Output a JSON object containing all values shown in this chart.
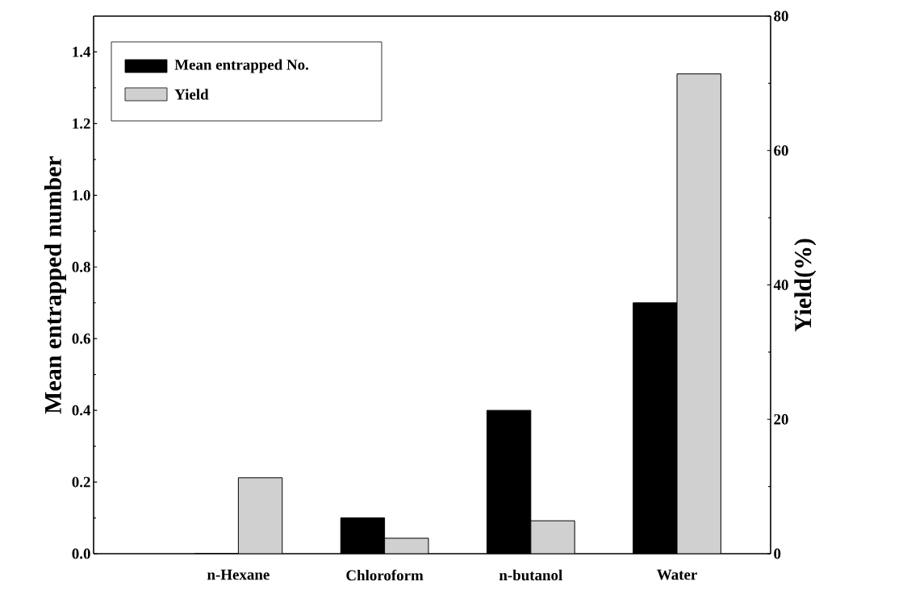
{
  "chart_data": {
    "type": "bar",
    "ylabel": "Mean entrapped number",
    "y2label": "Yield(%)",
    "categories": [
      "n-Hexane",
      "Chloroform",
      "n-butanol",
      "Water"
    ],
    "series": [
      {
        "name": "Mean entrapped No.",
        "color": "#000000",
        "values": [
          0,
          0.1,
          0.4,
          0.7
        ]
      },
      {
        "name": "Yield",
        "color": "#d0d0d0",
        "axis": "y2",
        "values": [
          11.3,
          2.3,
          4.9,
          71.4
        ]
      }
    ],
    "ylim": [
      0,
      1.5
    ],
    "yticks": [
      {
        "value": 0,
        "label": "0.0"
      },
      {
        "value": 0.2,
        "label": "0.2"
      },
      {
        "value": 0.4,
        "label": "0.4"
      },
      {
        "value": 0.6,
        "label": "0.6"
      },
      {
        "value": 0.8,
        "label": "0.8"
      },
      {
        "value": 1.0,
        "label": "1.0"
      },
      {
        "value": 1.2,
        "label": "1.2"
      },
      {
        "value": 1.4,
        "label": "1.4"
      }
    ],
    "y2lim": [
      0,
      80
    ],
    "y2ticks": [
      0,
      20,
      40,
      60,
      80
    ],
    "legend": "top left",
    "grid": false
  }
}
